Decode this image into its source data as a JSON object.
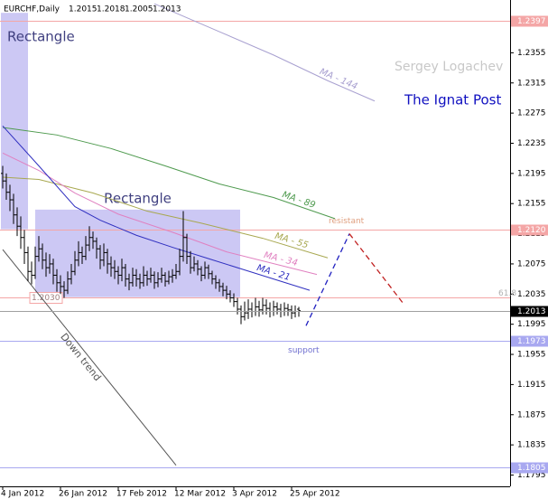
{
  "chart_data": {
    "type": "ohlc",
    "title": "EURCHF,Daily",
    "color": "#000000",
    "grid": false,
    "categories": [
      "4 Jan 2012",
      null,
      null,
      null,
      null,
      null,
      null,
      null,
      null,
      null,
      null,
      null,
      null,
      null,
      null,
      null,
      "26 Jan 2012",
      null,
      null,
      null,
      null,
      null,
      null,
      null,
      null,
      null,
      null,
      null,
      null,
      null,
      null,
      null,
      "17 Feb 2012",
      null,
      null,
      null,
      null,
      null,
      null,
      null,
      null,
      null,
      null,
      null,
      null,
      null,
      null,
      null,
      "12 Mar 2012",
      null,
      null,
      null,
      null,
      null,
      null,
      null,
      null,
      null,
      null,
      null,
      null,
      null,
      null,
      null,
      "3 Apr 2012",
      null,
      null,
      null,
      null,
      null,
      null,
      null,
      null,
      null,
      null,
      null,
      null,
      null,
      null,
      null,
      "25 Apr 2012",
      null,
      null
    ],
    "open": [
      1.2195,
      1.2185,
      1.217,
      1.216,
      1.214,
      1.2125,
      1.211,
      1.209,
      1.2065,
      1.206,
      1.2085,
      1.2095,
      1.208,
      1.207,
      1.2075,
      1.206,
      1.205,
      1.2045,
      1.204,
      1.2055,
      1.2065,
      1.208,
      1.209,
      1.2085,
      1.21,
      1.211,
      1.2105,
      1.2095,
      1.208,
      1.209,
      1.2075,
      1.207,
      1.2065,
      1.206,
      1.207,
      1.2055,
      1.205,
      1.206,
      1.2055,
      1.205,
      1.206,
      1.2055,
      1.206,
      1.205,
      1.2055,
      1.206,
      1.2052,
      1.2058,
      1.206,
      1.2065,
      1.2085,
      1.211,
      1.2085,
      1.207,
      1.2075,
      1.2068,
      1.206,
      1.207,
      1.2062,
      1.2055,
      1.205,
      1.2045,
      1.204,
      1.2035,
      1.203,
      1.2025,
      1.2015,
      1.2005,
      1.201,
      1.2015,
      1.2012,
      1.2018,
      1.2014,
      1.202,
      1.2016,
      1.2012,
      1.2018,
      1.2015,
      1.2012,
      1.2016,
      1.2014,
      1.201,
      1.2015
    ],
    "high": [
      1.2205,
      1.2195,
      1.218,
      1.2168,
      1.215,
      1.2138,
      1.212,
      1.2098,
      1.2078,
      1.2098,
      1.2112,
      1.2102,
      1.209,
      1.2088,
      1.2082,
      1.2068,
      1.206,
      1.2052,
      1.2065,
      1.2075,
      1.2092,
      1.2105,
      1.2098,
      1.2112,
      1.2125,
      1.2118,
      1.211,
      1.21,
      1.2102,
      1.2095,
      1.2085,
      1.208,
      1.2072,
      1.2082,
      1.2075,
      1.2062,
      1.207,
      1.2068,
      1.2062,
      1.2072,
      1.2066,
      1.207,
      1.2065,
      1.2064,
      1.207,
      1.2064,
      1.2066,
      1.2068,
      1.2075,
      1.2095,
      1.2145,
      1.2115,
      1.2092,
      1.2085,
      1.208,
      1.2072,
      1.2078,
      1.2074,
      1.2066,
      1.206,
      1.2055,
      1.205,
      1.2046,
      1.204,
      1.2036,
      1.203,
      1.202,
      1.2025,
      1.2028,
      1.2024,
      1.203,
      1.2026,
      1.203,
      1.2028,
      1.2024,
      1.2026,
      1.2024,
      1.2022,
      1.2024,
      1.2022,
      1.202,
      1.202,
      1.2018
    ],
    "low": [
      1.2175,
      1.216,
      1.2145,
      1.2128,
      1.2112,
      1.2095,
      1.2075,
      1.2052,
      1.2048,
      1.2055,
      1.2078,
      1.2068,
      1.2058,
      1.2062,
      1.2048,
      1.2038,
      1.2035,
      1.203,
      1.2035,
      1.2048,
      1.206,
      1.2072,
      1.2075,
      1.208,
      1.2092,
      1.2095,
      1.2082,
      1.2068,
      1.2072,
      1.2062,
      1.2058,
      1.2055,
      1.2048,
      1.2052,
      1.2045,
      1.204,
      1.2045,
      1.2045,
      1.2042,
      1.2045,
      1.2046,
      1.205,
      1.2042,
      1.2044,
      1.205,
      1.2045,
      1.2048,
      1.205,
      1.2055,
      1.206,
      1.2078,
      1.2075,
      1.2062,
      1.2065,
      1.206,
      1.2052,
      1.2055,
      1.2055,
      1.2048,
      1.2042,
      1.2038,
      1.2032,
      1.2028,
      1.2024,
      1.2018,
      1.2008,
      1.1995,
      1.2,
      1.2002,
      1.2004,
      1.2006,
      1.2005,
      1.2008,
      1.2008,
      1.2004,
      1.2006,
      1.2008,
      1.2004,
      1.2006,
      1.2006,
      1.2002,
      1.2004,
      1.2005
    ],
    "close": [
      1.2185,
      1.217,
      1.216,
      1.214,
      1.2125,
      1.211,
      1.209,
      1.2065,
      1.206,
      1.2085,
      1.2095,
      1.208,
      1.207,
      1.2075,
      1.206,
      1.205,
      1.2045,
      1.204,
      1.2055,
      1.2065,
      1.208,
      1.209,
      1.2085,
      1.21,
      1.211,
      1.2105,
      1.2095,
      1.208,
      1.209,
      1.2075,
      1.207,
      1.2065,
      1.206,
      1.207,
      1.2055,
      1.205,
      1.206,
      1.2055,
      1.205,
      1.206,
      1.2055,
      1.206,
      1.205,
      1.2055,
      1.206,
      1.2052,
      1.2058,
      1.206,
      1.2065,
      1.2085,
      1.211,
      1.2085,
      1.207,
      1.2075,
      1.2068,
      1.206,
      1.207,
      1.2062,
      1.2055,
      1.205,
      1.2045,
      1.204,
      1.2035,
      1.203,
      1.2025,
      1.2015,
      1.2005,
      1.201,
      1.2015,
      1.2012,
      1.2018,
      1.2014,
      1.202,
      1.2016,
      1.2012,
      1.2018,
      1.2015,
      1.2012,
      1.2016,
      1.2014,
      1.201,
      1.2012,
      1.2013
    ],
    "ylim": [
      1.178,
      1.2425
    ],
    "yticks": [
      1.2395,
      1.2355,
      1.2315,
      1.2275,
      1.2235,
      1.2195,
      1.2155,
      1.2115,
      1.2075,
      1.2035,
      1.1995,
      1.1955,
      1.1915,
      1.1875,
      1.1835,
      1.1795
    ],
    "indicators": [
      {
        "name": "MA - 144",
        "color": "#a8a0d0",
        "x": [
          42,
          60,
          75,
          90,
          103
        ],
        "values": [
          1.242,
          1.2383,
          1.2352,
          1.2318,
          1.2291
        ]
      },
      {
        "name": "MA - 89",
        "color": "#4e9a4e",
        "x": [
          0,
          15,
          30,
          45,
          60,
          75,
          92
        ],
        "values": [
          1.2256,
          1.2246,
          1.2228,
          1.2205,
          1.2181,
          1.2163,
          1.2135
        ]
      },
      {
        "name": "MA - 55",
        "color": "#a8a850",
        "x": [
          0,
          10,
          25,
          40,
          55,
          72,
          90
        ],
        "values": [
          1.219,
          1.2187,
          1.2169,
          1.2145,
          1.2129,
          1.2109,
          1.2083
        ]
      },
      {
        "name": "MA - 34",
        "color": "#e080c0",
        "x": [
          0,
          10,
          20,
          32,
          47,
          62,
          87
        ],
        "values": [
          1.2222,
          1.2199,
          1.2169,
          1.2141,
          1.2117,
          1.2091,
          1.2061
        ]
      },
      {
        "name": "MA - 21",
        "color": "#3030c0",
        "x": [
          0,
          10,
          20,
          27,
          37,
          47,
          57,
          67,
          85
        ],
        "values": [
          1.2258,
          1.2205,
          1.2151,
          1.2133,
          1.2113,
          1.2097,
          1.2082,
          1.2067,
          1.204
        ]
      }
    ],
    "levels": [
      {
        "value": 1.2397,
        "color": "#f4a6a6",
        "label_side": "axis"
      },
      {
        "value": 1.212,
        "label": "1.2120",
        "color": "#f4a6a6",
        "label_side": "axis",
        "note": "resistant",
        "note_color": "#e0a080"
      },
      {
        "value": 1.203,
        "label": "1.2030",
        "color": "#f4a6a6",
        "label_side": "left",
        "note": "61.8",
        "note_color": "#b0b0b0"
      },
      {
        "value": 1.1973,
        "color": "#a8a8f0",
        "label_side": "axis",
        "note": "support",
        "note_color": "#7070d0"
      },
      {
        "value": 1.1805,
        "color": "#a8a8f0",
        "label_side": "axis"
      }
    ],
    "rectangles": [
      {
        "label": "Rectangle",
        "color": "#ccc8f4",
        "x": [
          -0.5,
          7
        ],
        "values": [
          1.2408,
          1.2121
        ]
      },
      {
        "label": "Rectangle",
        "color": "#ccc8f4",
        "x": [
          9,
          65.75
        ],
        "values": [
          1.2147,
          1.2031
        ]
      }
    ],
    "trendlines": [
      {
        "label": "Down trend",
        "color": "#555555",
        "dashed": false,
        "x": [
          0,
          48
        ],
        "values": [
          1.2094,
          1.1808
        ]
      },
      {
        "color": "#2020c0",
        "dashed": true,
        "x": [
          84,
          96
        ],
        "values": [
          1.1993,
          1.2115
        ]
      },
      {
        "color": "#c02020",
        "dashed": true,
        "x": [
          96,
          111
        ],
        "values": [
          1.2115,
          1.2022
        ]
      }
    ],
    "credits": {
      "author": "Sergey Logachev",
      "site": "The Ignat Post"
    }
  }
}
